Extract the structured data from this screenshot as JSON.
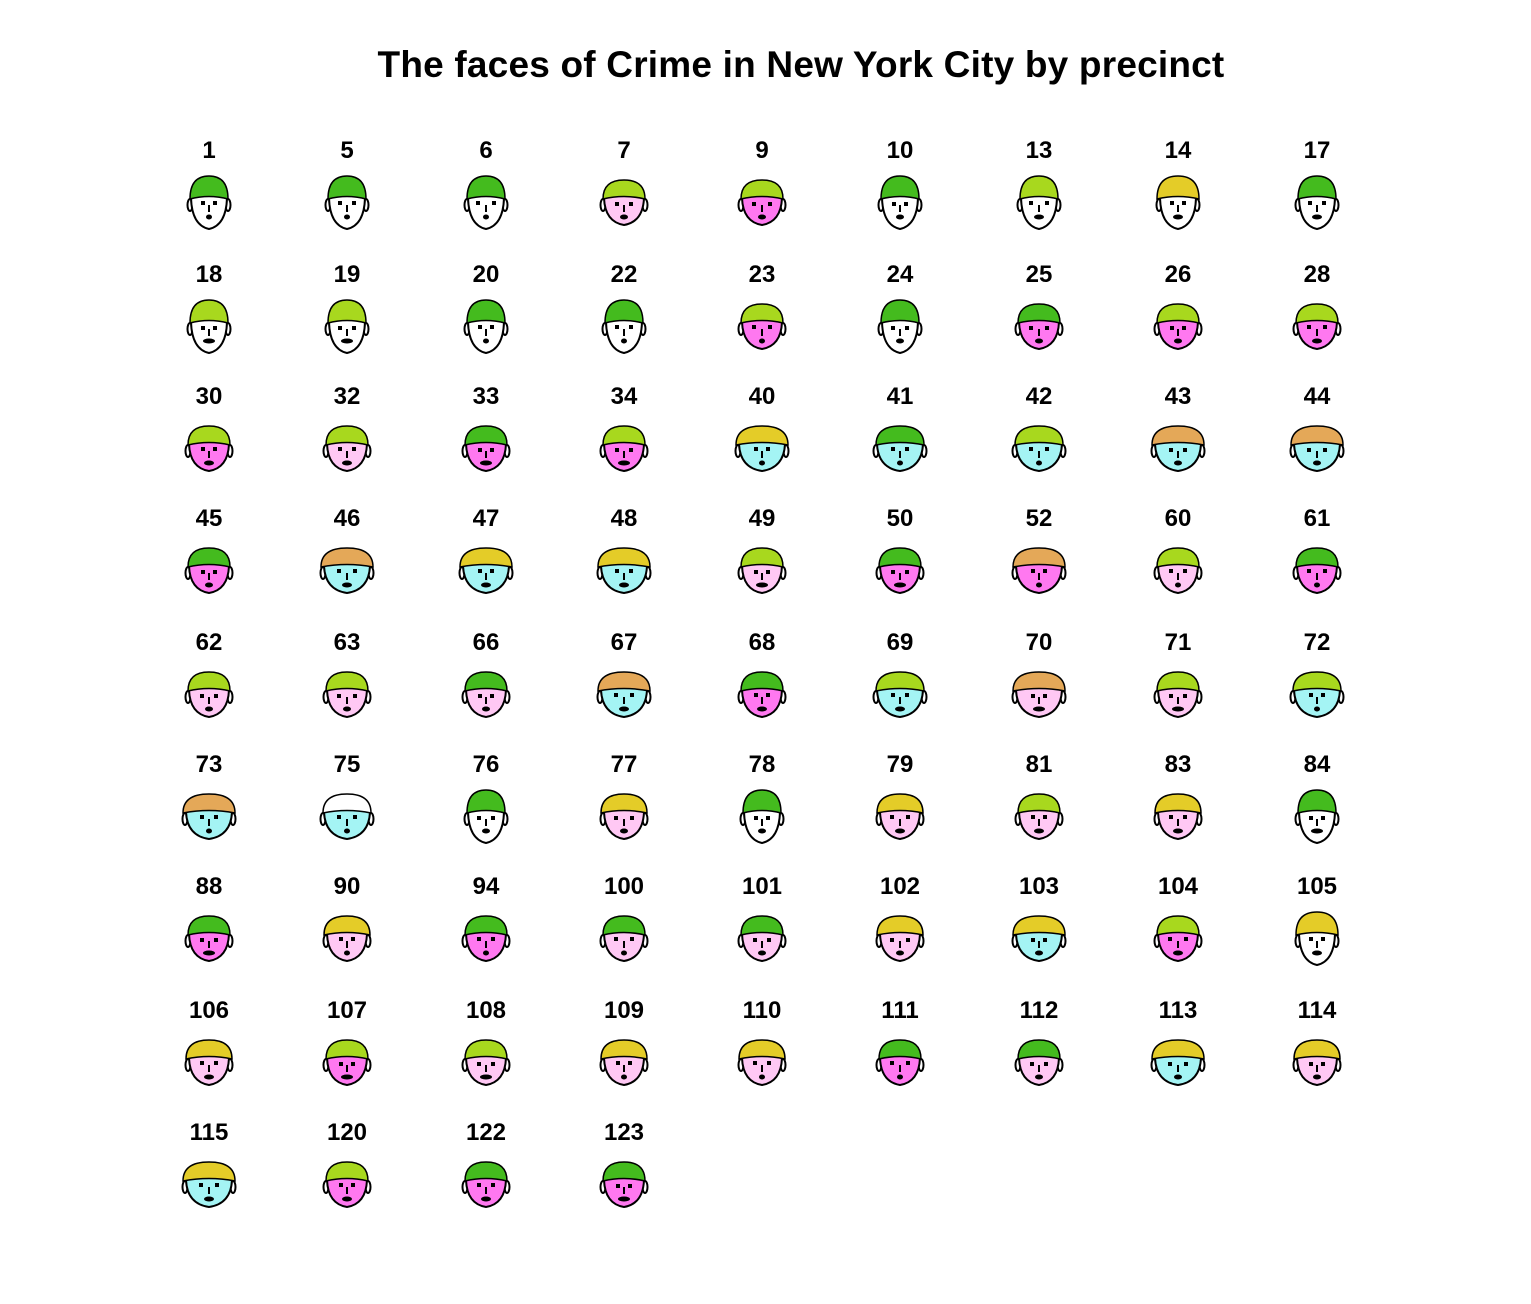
{
  "chart_data": {
    "type": "chernoff-faces",
    "title": "The faces of Crime in New York City by precinct",
    "labels": [
      "1",
      "5",
      "6",
      "7",
      "9",
      "10",
      "13",
      "14",
      "17",
      "18",
      "19",
      "20",
      "22",
      "23",
      "24",
      "25",
      "26",
      "28",
      "30",
      "32",
      "33",
      "34",
      "40",
      "41",
      "42",
      "43",
      "44",
      "45",
      "46",
      "47",
      "48",
      "49",
      "50",
      "52",
      "60",
      "61",
      "62",
      "63",
      "66",
      "67",
      "68",
      "69",
      "70",
      "71",
      "72",
      "73",
      "75",
      "76",
      "77",
      "78",
      "79",
      "81",
      "83",
      "84",
      "88",
      "90",
      "94",
      "100",
      "101",
      "102",
      "103",
      "104",
      "105",
      "106",
      "107",
      "108",
      "109",
      "110",
      "111",
      "112",
      "113",
      "114",
      "115",
      "120",
      "122",
      "123"
    ],
    "face_color": [
      "w",
      "w",
      "w",
      "lp",
      "mp",
      "w",
      "w",
      "w",
      "w",
      "w",
      "w",
      "w",
      "w",
      "mp",
      "w",
      "mp",
      "mp",
      "mp",
      "mp",
      "lp",
      "mp",
      "mp",
      "c",
      "c",
      "c",
      "c",
      "c",
      "mp",
      "c",
      "c",
      "c",
      "lp",
      "mp",
      "mp",
      "lp",
      "mp",
      "lp",
      "lp",
      "lp",
      "c",
      "mp",
      "c",
      "lp",
      "lp",
      "c",
      "c",
      "c",
      "w",
      "lp",
      "w",
      "lp",
      "lp",
      "lp",
      "w",
      "mp",
      "lp",
      "mp",
      "lp",
      "lp",
      "lp",
      "c",
      "mp",
      "w",
      "lp",
      "mp",
      "lp",
      "lp",
      "lp",
      "mp",
      "lp",
      "c",
      "lp",
      "c",
      "mp",
      "mp",
      "mp"
    ],
    "hair_color": [
      "g",
      "g",
      "g",
      "l",
      "l",
      "g",
      "l",
      "y",
      "g",
      "l",
      "l",
      "g",
      "g",
      "l",
      "g",
      "g",
      "l",
      "l",
      "l",
      "l",
      "g",
      "l",
      "y",
      "g",
      "l",
      "o",
      "o",
      "g",
      "o",
      "y",
      "y",
      "l",
      "g",
      "o",
      "l",
      "g",
      "l",
      "l",
      "g",
      "o",
      "g",
      "l",
      "o",
      "l",
      "l",
      "o",
      "n",
      "g",
      "y",
      "g",
      "y",
      "l",
      "y",
      "g",
      "g",
      "y",
      "g",
      "g",
      "g",
      "y",
      "y",
      "l",
      "y",
      "y",
      "l",
      "l",
      "y",
      "y",
      "g",
      "g",
      "y",
      "y",
      "y",
      "l",
      "g",
      "g"
    ],
    "colors": {
      "white": "#ffffff",
      "light_pink": "#ffc8f4",
      "magenta_pink": "#ff78f0",
      "cyan": "#a4f4f4",
      "hair_green": "#44bb1e",
      "hair_lime": "#a8d81e",
      "hair_yellow": "#e4cc28",
      "hair_orange": "#e4a858",
      "outline": "#000000"
    }
  }
}
